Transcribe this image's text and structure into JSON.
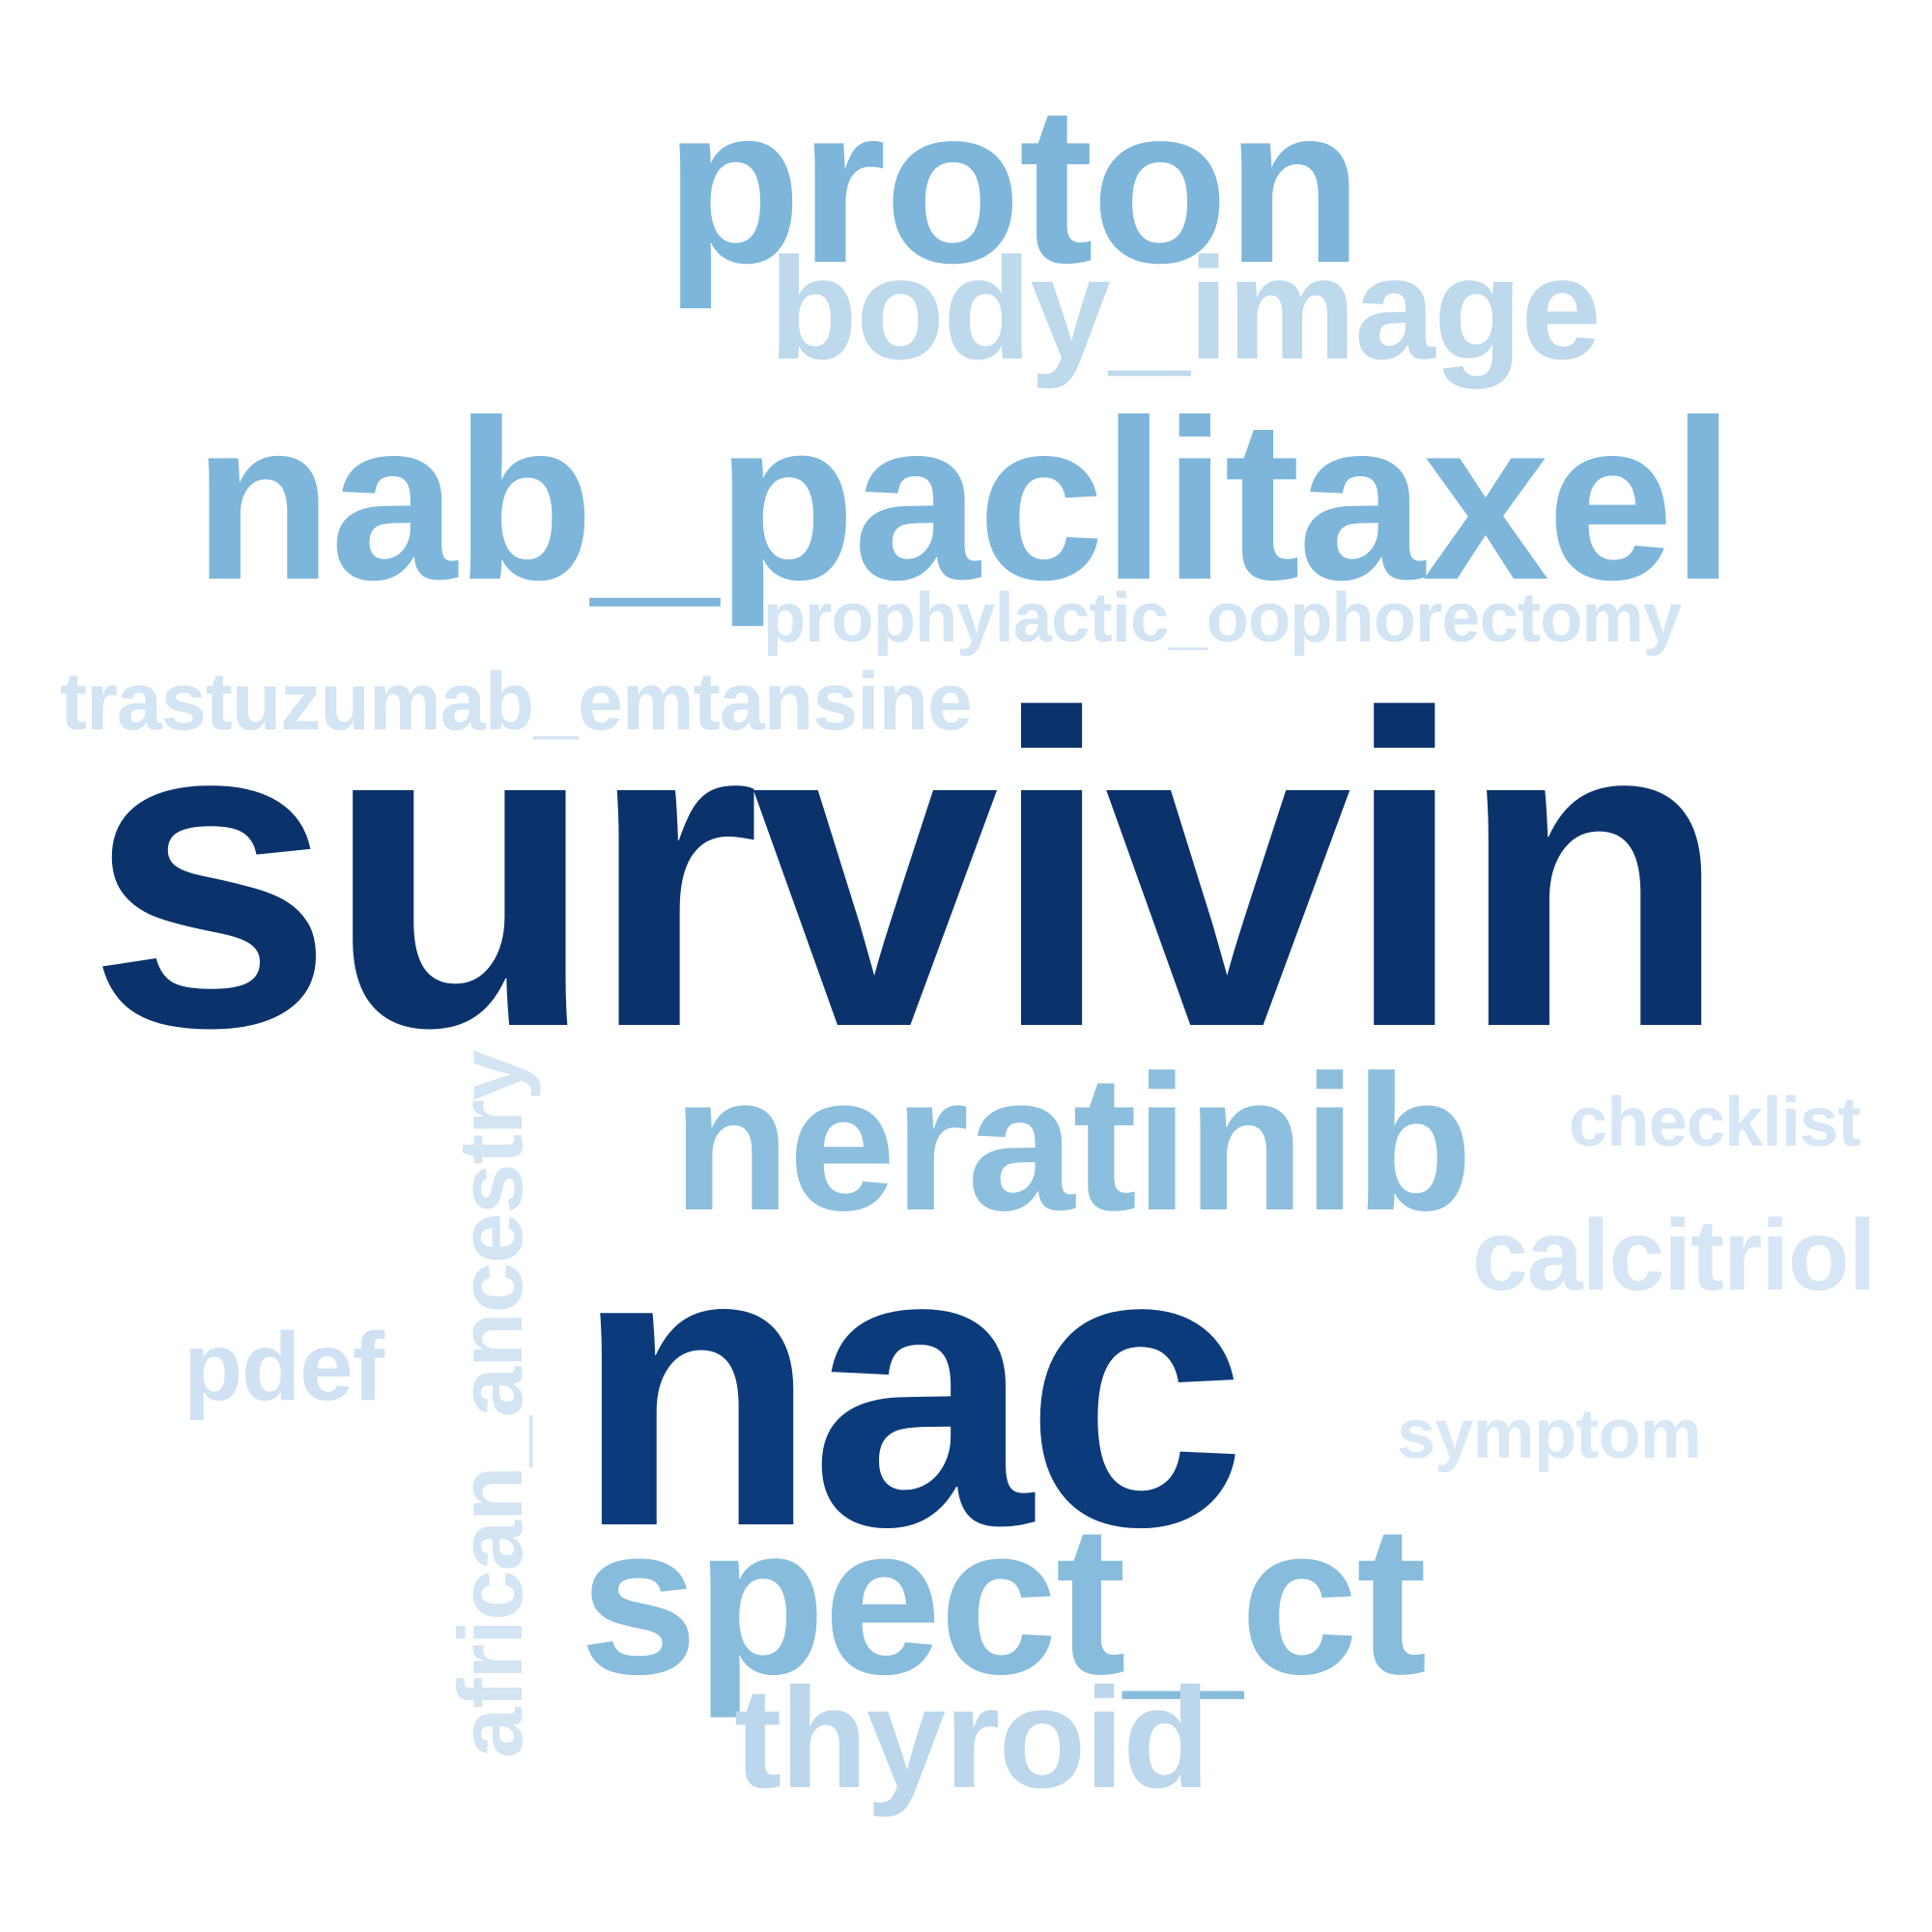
{
  "words": [
    {
      "key": "proton",
      "text": "proton",
      "color": "#7db6da"
    },
    {
      "key": "body_image",
      "text": "body_image",
      "color": "#bed8ec"
    },
    {
      "key": "nab_paclitaxel",
      "text": "nab_paclitaxel",
      "color": "#7db6da"
    },
    {
      "key": "prophylactic_oophorectomy",
      "text": "prophylactic_oophorectomy",
      "color": "#d3e4f3"
    },
    {
      "key": "trastuzumab_emtansine",
      "text": "trastuzumab_emtansine",
      "color": "#d3e4f3"
    },
    {
      "key": "survivin",
      "text": "survivin",
      "color": "#0b326b"
    },
    {
      "key": "neratinib",
      "text": "neratinib",
      "color": "#8cbfdd"
    },
    {
      "key": "checklist",
      "text": "checklist",
      "color": "#d6e6f4"
    },
    {
      "key": "calcitriol",
      "text": "calcitriol",
      "color": "#d6e6f4"
    },
    {
      "key": "pdef",
      "text": "pdef",
      "color": "#cfe1f2"
    },
    {
      "key": "nac",
      "text": "nac",
      "color": "#0c3b7b"
    },
    {
      "key": "symptom",
      "text": "symptom",
      "color": "#d9e8f5"
    },
    {
      "key": "spect_ct",
      "text": "spect_ct",
      "color": "#87bcdc"
    },
    {
      "key": "thyroid",
      "text": "thyroid",
      "color": "#bcd7eb"
    },
    {
      "key": "african_ancestry",
      "text": "african_ancestry",
      "color": "#d3e4f3"
    }
  ]
}
